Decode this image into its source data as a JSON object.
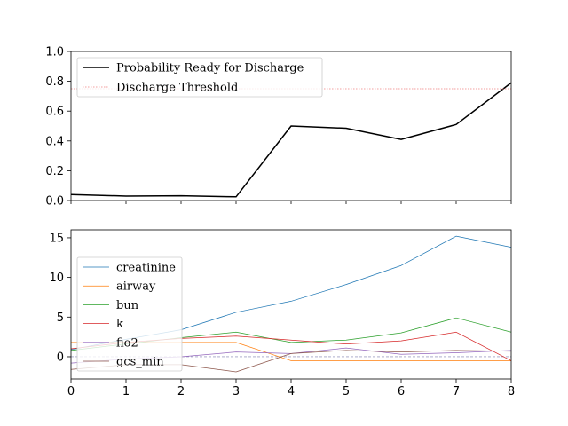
{
  "chart_data": [
    {
      "type": "line",
      "x": [
        0,
        1,
        2,
        3,
        4,
        5,
        6,
        7,
        8
      ],
      "xlim": [
        0,
        8
      ],
      "ylim": [
        0,
        1.0
      ],
      "xticks": [
        0,
        1,
        2,
        3,
        4,
        5,
        6,
        7,
        8
      ],
      "xtick_labels_visible": false,
      "yticks": [
        0.0,
        0.2,
        0.4,
        0.6,
        0.8,
        1.0
      ],
      "ytick_labels": [
        "0.0",
        "0.2",
        "0.4",
        "0.6",
        "0.8",
        "1.0"
      ],
      "legend_position": "upper-left",
      "series": [
        {
          "name": "Probability Ready for Discharge",
          "color": "#000000",
          "style": "solid",
          "values": [
            0.04,
            0.03,
            0.032,
            0.025,
            0.5,
            0.485,
            0.41,
            0.51,
            0.79
          ]
        },
        {
          "name": "Discharge Threshold",
          "color": "#f08080",
          "style": "dotted",
          "values": [
            0.75,
            0.75,
            0.75,
            0.75,
            0.75,
            0.75,
            0.75,
            0.75,
            0.75
          ]
        }
      ]
    },
    {
      "type": "line",
      "x": [
        0,
        1,
        2,
        3,
        4,
        5,
        6,
        7,
        8
      ],
      "xlim": [
        0,
        8
      ],
      "ylim": [
        -2.8,
        16.0
      ],
      "xticks": [
        0,
        1,
        2,
        3,
        4,
        5,
        6,
        7,
        8
      ],
      "xtick_labels": [
        "0",
        "1",
        "2",
        "3",
        "4",
        "5",
        "6",
        "7",
        "8"
      ],
      "yticks": [
        0,
        5,
        10,
        15
      ],
      "ytick_labels": [
        "0",
        "5",
        "10",
        "15"
      ],
      "legend_position": "center-left",
      "baseline": {
        "value": 0,
        "color": "#7f7faf",
        "style": "dashed"
      },
      "series": [
        {
          "name": "creatinine",
          "color": "#1f77b4",
          "values": [
            0.9,
            2.2,
            3.4,
            5.6,
            7.0,
            9.1,
            11.5,
            15.2,
            13.8
          ]
        },
        {
          "name": "airway",
          "color": "#ff7f0e",
          "values": [
            1.8,
            1.8,
            1.8,
            1.8,
            -0.5,
            -0.5,
            -0.5,
            -0.5,
            -0.5
          ]
        },
        {
          "name": "bun",
          "color": "#2ca02c",
          "values": [
            0.8,
            1.6,
            2.4,
            3.1,
            1.8,
            2.1,
            3.0,
            4.9,
            3.1
          ]
        },
        {
          "name": "k",
          "color": "#d62728",
          "values": [
            1.0,
            1.8,
            2.3,
            2.6,
            2.1,
            1.6,
            2.0,
            3.1,
            -0.5
          ]
        },
        {
          "name": "fio2",
          "color": "#9467bd",
          "values": [
            -0.8,
            -0.3,
            0.0,
            0.6,
            0.4,
            1.1,
            0.3,
            0.5,
            0.8
          ]
        },
        {
          "name": "gcs_min",
          "color": "#8c564b",
          "values": [
            -1.6,
            -1.0,
            -1.0,
            -1.9,
            0.4,
            0.8,
            0.6,
            0.8,
            0.7
          ]
        }
      ]
    }
  ]
}
